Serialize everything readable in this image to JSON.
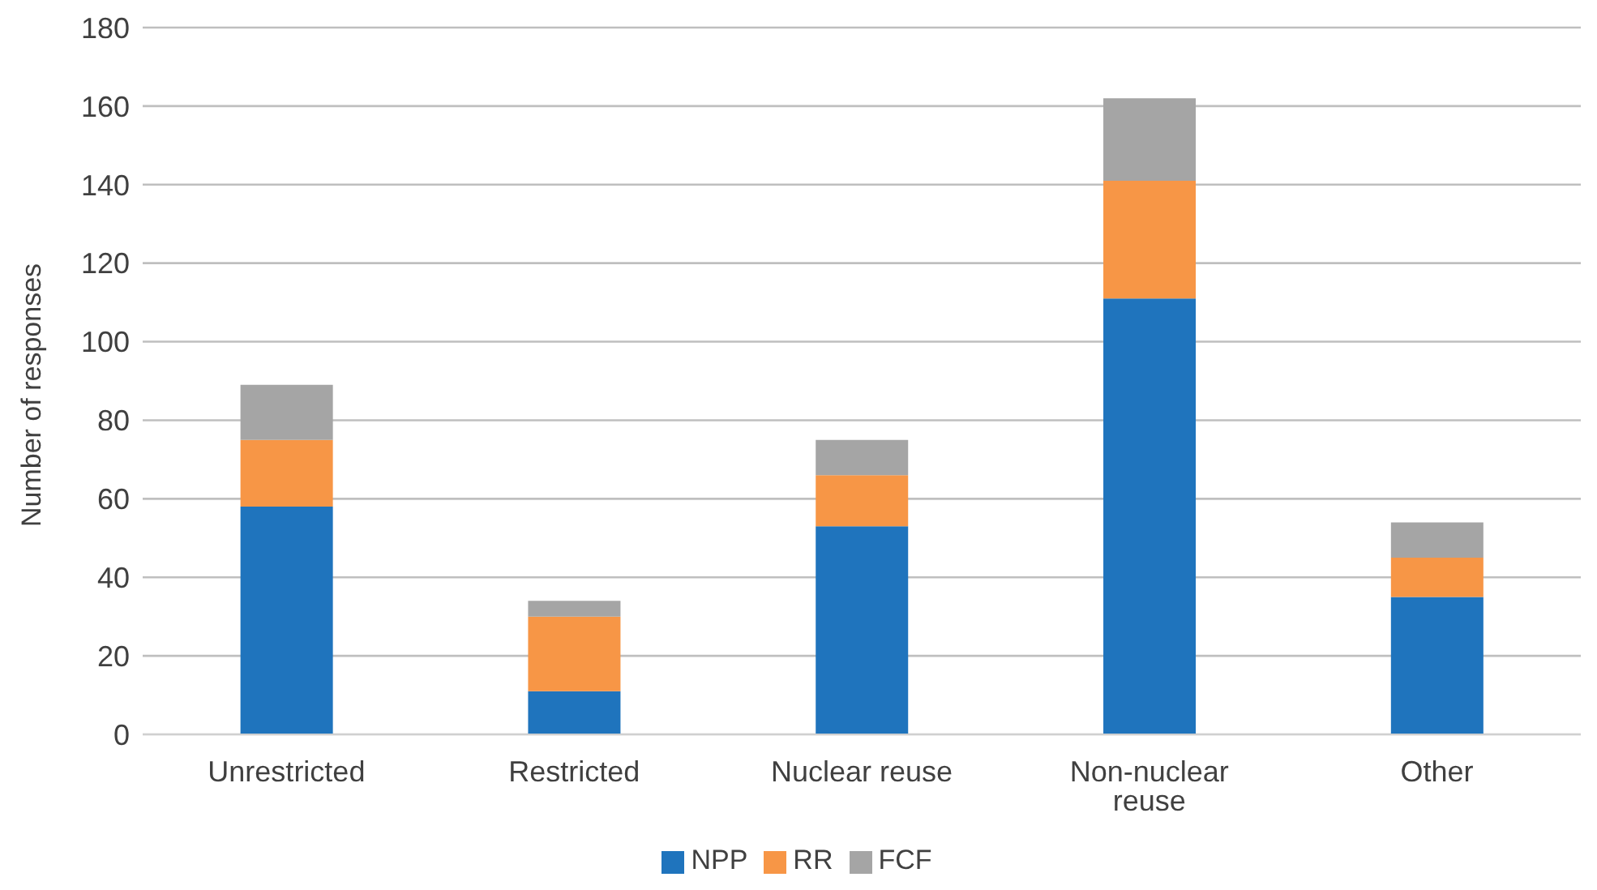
{
  "chart_data": {
    "type": "bar",
    "stacked": true,
    "ylabel": "Number of responses",
    "categories": [
      "Unrestricted",
      "Restricted",
      "Nuclear reuse",
      "Non-nuclear reuse",
      "Other"
    ],
    "series": [
      {
        "name": "NPP",
        "color": "#1f74bd",
        "values": [
          58,
          11,
          53,
          111,
          35
        ]
      },
      {
        "name": "RR",
        "color": "#f79646",
        "values": [
          17,
          19,
          13,
          30,
          10
        ]
      },
      {
        "name": "FCF",
        "color": "#a5a5a5",
        "values": [
          14,
          4,
          9,
          21,
          9
        ]
      }
    ],
    "ylim": [
      0,
      180
    ],
    "yticks": [
      0,
      20,
      40,
      60,
      80,
      100,
      120,
      140,
      160,
      180
    ],
    "grid": "y",
    "legend": "bottom"
  }
}
